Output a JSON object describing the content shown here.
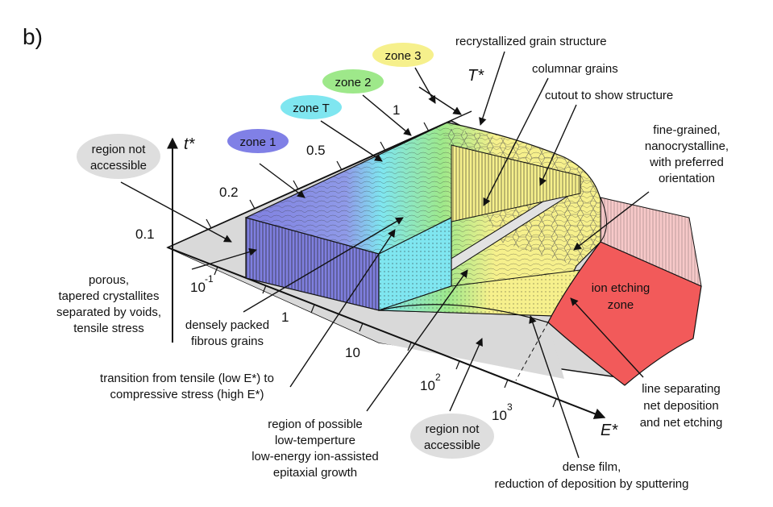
{
  "panel_label": "b)",
  "axes": {
    "t_star": "t*",
    "T_star": "T*",
    "E_star": "E*",
    "t_ticks": [
      "0.1",
      "0.2",
      "0.5",
      "1"
    ],
    "E_ticks": [
      "10",
      "-1",
      "1",
      "10",
      "10",
      "2",
      "10",
      "3"
    ]
  },
  "zones": [
    "zone 1",
    "zone T",
    "zone 2",
    "zone 3"
  ],
  "annotations": {
    "region_top": [
      "region not",
      "accessible"
    ],
    "region_bottom": [
      "region not",
      "accessible"
    ],
    "recrystallized": "recrystallized grain structure",
    "columnar": "columnar grains",
    "cutout": "cutout to show structure",
    "fine_grained": [
      "fine-grained,",
      "nanocrystalline,",
      "with preferred",
      "orientation"
    ],
    "porous": [
      "porous,",
      "tapered crystallites",
      "separated by voids,",
      "tensile stress"
    ],
    "densely": [
      "densely packed",
      "fibrous grains"
    ],
    "transition": [
      "transition from tensile (low E*) to",
      "compressive stress (high E*)"
    ],
    "region_possible": [
      "region of possible",
      "low-temperture",
      "low-energy ion-assisted",
      "epitaxial growth"
    ],
    "dense_film": [
      "dense film,",
      "reduction of deposition by sputtering"
    ],
    "ion_etching": [
      "ion etching",
      "zone"
    ],
    "line_sep": [
      "line separating",
      "net deposition",
      "and net etching"
    ]
  },
  "colors": {
    "zone1": "#7f7fe0",
    "zoneT": "#7fe6f0",
    "zone2": "#9ee88a",
    "zone3": "#f6f08c",
    "etch": "#f25a5a",
    "plane": "#d8d8d8"
  }
}
